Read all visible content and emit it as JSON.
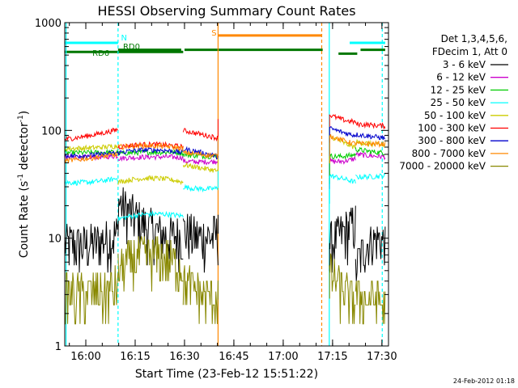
{
  "chart_data": {
    "type": "line",
    "title": "HESSI Observing Summary Count Rates",
    "xlabel": "Start Time (23-Feb-12 15:51:22)",
    "ylabel_main": "Count Rate (s",
    "ylabel_sup1": "-1",
    "ylabel_mid": " detector",
    "ylabel_sup2": "-1",
    "ylabel_end": ")",
    "yscale": "log",
    "ylim": [
      1,
      1000
    ],
    "xlim_minutes": [
      -6.4,
      92
    ],
    "x_ticks": [
      {
        "m": 0,
        "label": "16:00"
      },
      {
        "m": 15,
        "label": "16:15"
      },
      {
        "m": 30,
        "label": "16:30"
      },
      {
        "m": 45,
        "label": "16:45"
      },
      {
        "m": 60,
        "label": "17:00"
      },
      {
        "m": 75,
        "label": "17:15"
      },
      {
        "m": 90,
        "label": "17:30"
      }
    ],
    "y_ticks": [
      {
        "v": 1,
        "label": "1"
      },
      {
        "v": 10,
        "label": "10"
      },
      {
        "v": 100,
        "label": "100"
      },
      {
        "v": 1000,
        "label": "1000"
      }
    ],
    "legend": {
      "placement": "right",
      "header1": "Det 1,3,4,5,6,",
      "header2": "FDecim 1, Att 0"
    },
    "series": [
      {
        "name": "3 - 6 keV",
        "color": "#000000",
        "segments": [
          [
            9,
            8,
            11,
            1
          ],
          [
            22,
            8,
            11,
            1
          ],
          [
            12,
            9,
            11,
            1
          ],
          [
            9,
            11,
            14,
            1
          ],
          [
            5,
            12,
            9,
            0.7
          ]
        ]
      },
      {
        "name": "6 - 12 keV",
        "color": "#cc00cc",
        "segments": [
          [
            56,
            56,
            58,
            0
          ],
          [
            55,
            58,
            56,
            0
          ],
          [
            52,
            50,
            52,
            0
          ],
          [
            52,
            50,
            55,
            0
          ],
          [
            60,
            58,
            57,
            0
          ]
        ]
      },
      {
        "name": "12 - 25 keV",
        "color": "#00cc00",
        "segments": [
          [
            62,
            62,
            63,
            0
          ],
          [
            61,
            64,
            62,
            0
          ],
          [
            60,
            57,
            58,
            0
          ],
          [
            58,
            56,
            60,
            0
          ],
          [
            67,
            63,
            62,
            0
          ]
        ]
      },
      {
        "name": "25 - 50 keV",
        "color": "#00ffff",
        "segments": [
          [
            33,
            32,
            36,
            0
          ],
          [
            15,
            18,
            16,
            0
          ],
          [
            30,
            28,
            29,
            0
          ],
          [
            38,
            36,
            33,
            0
          ],
          [
            37,
            37,
            38,
            0
          ]
        ]
      },
      {
        "name": "50 - 100 keV",
        "color": "#cccc00",
        "segments": [
          [
            68,
            68,
            72,
            0
          ],
          [
            33,
            39,
            33,
            0
          ],
          [
            48,
            45,
            42,
            0
          ],
          [
            90,
            75,
            70,
            0
          ],
          [
            78,
            75,
            72,
            0
          ]
        ]
      },
      {
        "name": "100 - 300 keV",
        "color": "#ff0000",
        "segments": [
          [
            83,
            88,
            102,
            0
          ],
          [
            70,
            78,
            70,
            0
          ],
          [
            100,
            92,
            85,
            0
          ],
          [
            140,
            122,
            120,
            0
          ],
          [
            115,
            112,
            110,
            0
          ]
        ]
      },
      {
        "name": "300 - 800 keV",
        "color": "#0000cc",
        "segments": [
          [
            58,
            58,
            62,
            0
          ],
          [
            62,
            70,
            62,
            0
          ],
          [
            67,
            63,
            57,
            0
          ],
          [
            105,
            95,
            90,
            0
          ],
          [
            92,
            88,
            85,
            0
          ]
        ]
      },
      {
        "name": "800 - 7000 keV",
        "color": "#ff8800",
        "segments": [
          [
            52,
            55,
            60,
            0
          ],
          [
            70,
            75,
            68,
            0
          ],
          [
            62,
            60,
            58,
            0
          ],
          [
            90,
            80,
            75,
            0
          ],
          [
            75,
            75,
            75,
            0
          ]
        ]
      },
      {
        "name": "7000 - 20000 keV",
        "color": "#888800",
        "segments": [
          [
            3,
            3,
            3.5,
            1
          ],
          [
            5,
            9,
            5,
            1
          ],
          [
            4,
            3,
            2.7,
            1
          ],
          [
            5,
            3,
            2.5,
            1
          ],
          [
            3,
            2.6,
            2.5,
            1
          ]
        ]
      }
    ],
    "time_segments_minutes": [
      [
        -6.4,
        9.8
      ],
      [
        9.8,
        29.6
      ],
      [
        29.6,
        40.2
      ],
      [
        74.0,
        82.0
      ],
      [
        82.0,
        91.0
      ]
    ],
    "flag_labels": {
      "N": "N",
      "RD0": "RD0",
      "RD6": "RD6",
      "S": "S"
    },
    "colors": {
      "night": "#00ffff",
      "saa": "#ff8800",
      "decimation": "#007700"
    },
    "timestamp": "24-Feb-2012 01:18"
  }
}
